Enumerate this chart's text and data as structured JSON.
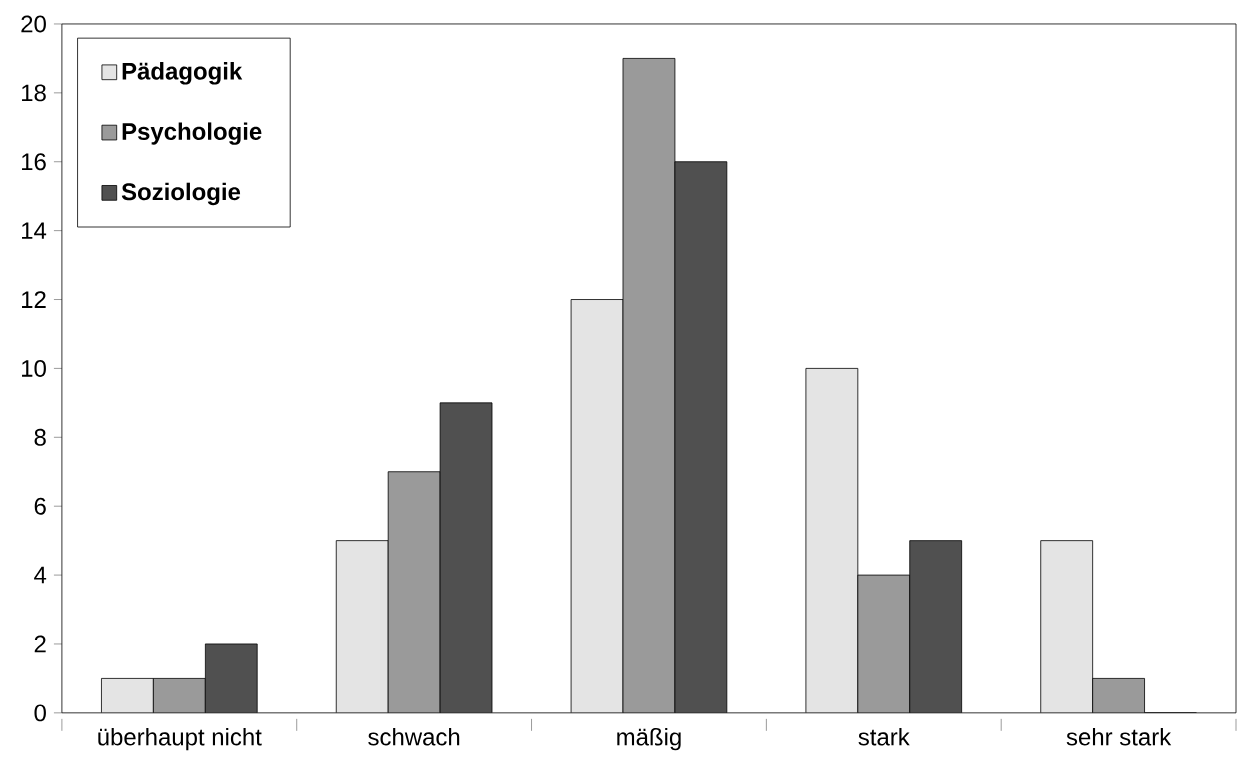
{
  "chart_data": {
    "type": "bar",
    "categories": [
      "überhaupt nicht",
      "schwach",
      "mäßig",
      "stark",
      "sehr stark"
    ],
    "series": [
      {
        "name": "Pädagogik",
        "color": "#e4e4e4",
        "values": [
          1,
          5,
          12,
          10,
          5
        ]
      },
      {
        "name": "Psychologie",
        "color": "#9a9a9a",
        "values": [
          1,
          7,
          19,
          4,
          1
        ]
      },
      {
        "name": "Soziologie",
        "color": "#505050",
        "values": [
          2,
          9,
          16,
          5,
          0
        ]
      }
    ],
    "ylim": [
      0,
      20
    ],
    "yticks": [
      0,
      2,
      4,
      6,
      8,
      10,
      12,
      14,
      16,
      18,
      20
    ],
    "grid": false,
    "legend": "top left"
  }
}
